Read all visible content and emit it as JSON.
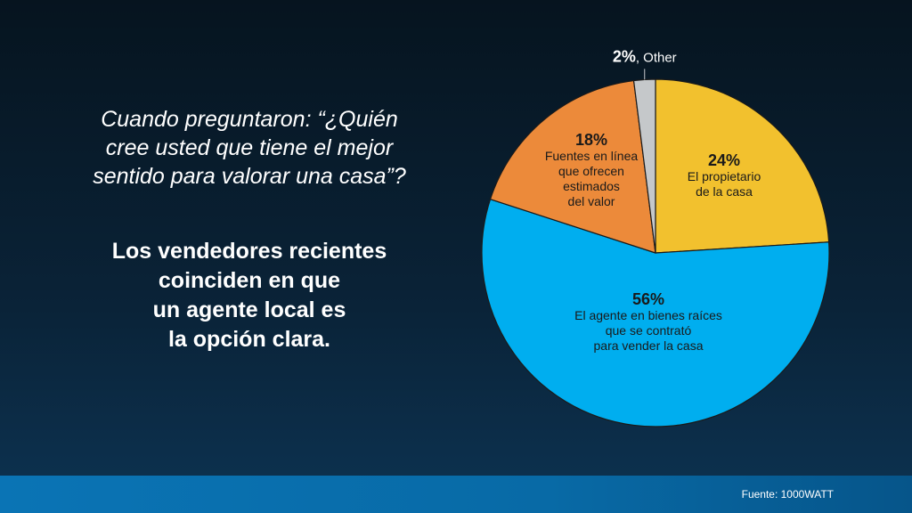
{
  "question_lines": [
    "Cuando preguntaron: “¿Quién",
    "cree usted que tiene el mejor",
    "sentido para valorar una casa”?"
  ],
  "answer_lines": [
    "Los vendedores recientes",
    "coinciden en que",
    "un agente local es",
    "la opción clara."
  ],
  "source": "Fuente: 1000WATT",
  "chart_data": {
    "type": "pie",
    "start": "top",
    "direction": "clockwise",
    "slices": [
      {
        "value": 24,
        "pct_label": "24%",
        "label_lines": [
          "El propietario",
          "de la casa"
        ],
        "color": "#f2c12e"
      },
      {
        "value": 56,
        "pct_label": "56%",
        "label_lines": [
          "El agente en bienes raíces",
          "que se contrató",
          "para vender la casa"
        ],
        "color": "#00aeef"
      },
      {
        "value": 18,
        "pct_label": "18%",
        "label_lines": [
          "Fuentes en línea",
          "que ofrecen",
          "estimados",
          "del valor"
        ],
        "color": "#ec8a3a"
      },
      {
        "value": 2,
        "pct_label": "2%",
        "label_lines": [
          ", Other"
        ],
        "color": "#c5c8ca"
      }
    ]
  }
}
